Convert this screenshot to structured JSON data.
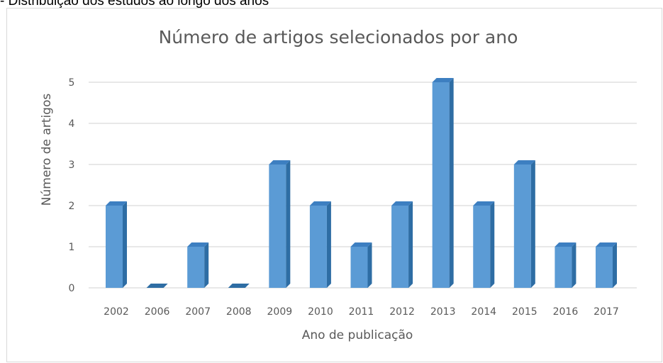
{
  "caption": "- Distribuição dos estudos ao longo dos anos",
  "chart_data": {
    "type": "bar",
    "title": "Número de artigos selecionados por ano",
    "xlabel": "Ano de publicação",
    "ylabel": "Número de artigos",
    "categories": [
      "2002",
      "2006",
      "2007",
      "2008",
      "2009",
      "2010",
      "2011",
      "2012",
      "2013",
      "2014",
      "2015",
      "2016",
      "2017"
    ],
    "values": [
      2,
      0,
      1,
      0,
      3,
      2,
      1,
      2,
      5,
      2,
      3,
      1,
      1
    ],
    "yticks": [
      "0",
      "1",
      "2",
      "3",
      "4",
      "5"
    ],
    "ylim": [
      0,
      5
    ],
    "grid": true,
    "colors": {
      "bar": "#5b9bd5",
      "bar_side": "#2e6da4",
      "bar_top": "#3d7fc1",
      "grid": "#d9d9d9",
      "text": "#595959"
    }
  }
}
